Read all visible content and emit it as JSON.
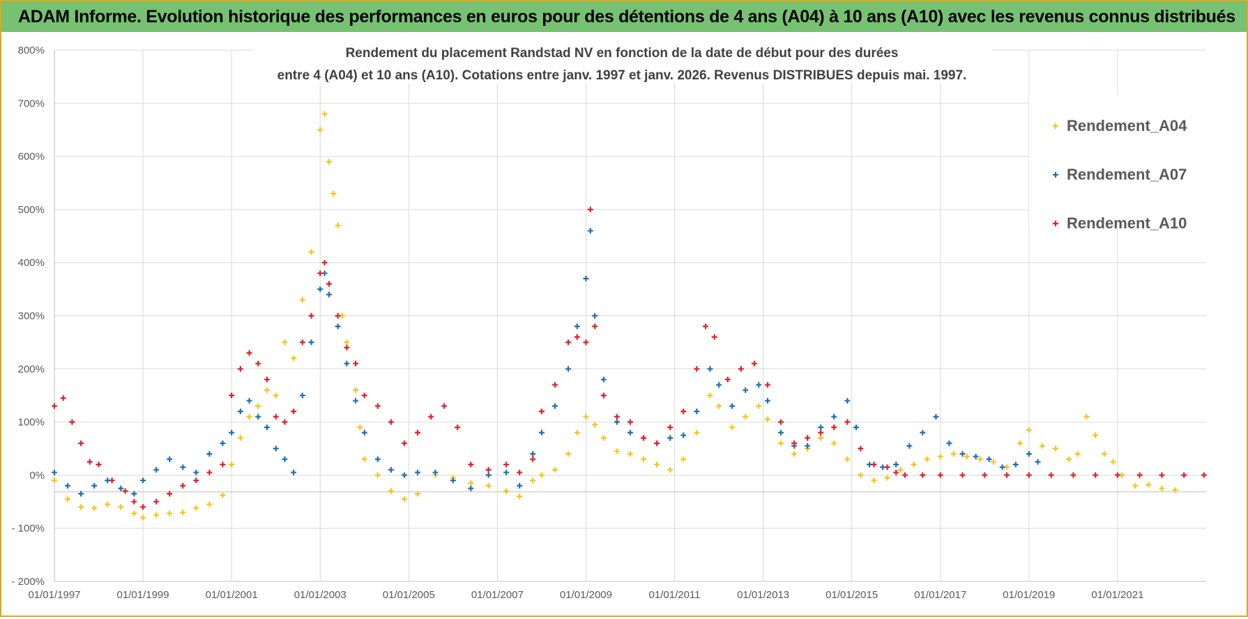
{
  "banner": {
    "title": "ADAM Informe. Evolution historique des performances en euros pour des détentions de 4 ans (A04) à 10 ans (A10) avec les revenus connus distribués"
  },
  "colors": {
    "banner_bg": "#76c172",
    "frame": "#d9a81f",
    "A04": "#f5c518",
    "A07": "#1f6fb8",
    "A10": "#e3202a",
    "grid": "#d9d9d9"
  },
  "chart_data": {
    "type": "scatter",
    "title_line1": "Rendement du placement Randstad NV en fonction de la date de début pour des durées",
    "title_line2": "entre 4 (A04) et 10 ans (A10). Cotations entre janv. 1997 et janv. 2026. Revenus DISTRIBUES depuis mai. 1997.",
    "xlabel": "",
    "ylabel": "",
    "x_range": [
      1997.0,
      2023.0
    ],
    "ylim": [
      -200,
      800
    ],
    "y_ticks": [
      "800%",
      "700%",
      "600%",
      "500%",
      "400%",
      "300%",
      "200%",
      "100%",
      "0%",
      "- 100%",
      "- 200%"
    ],
    "y_tick_values": [
      800,
      700,
      600,
      500,
      400,
      300,
      200,
      100,
      0,
      -100,
      -200
    ],
    "x_ticks": [
      "01/01/1997",
      "01/01/1999",
      "01/01/2001",
      "01/01/2003",
      "01/01/2005",
      "01/01/2007",
      "01/01/2009",
      "01/01/2011",
      "01/01/2013",
      "01/01/2015",
      "01/01/2017",
      "01/01/2019",
      "01/01/2021"
    ],
    "x_tick_values": [
      1997,
      1999,
      2001,
      2003,
      2005,
      2007,
      2009,
      2011,
      2013,
      2015,
      2017,
      2019,
      2021
    ],
    "legend_position": "top-right",
    "grid": true,
    "series": [
      {
        "name": "Rendement_A04",
        "color": "#f5c518",
        "points": [
          [
            1997.0,
            -10
          ],
          [
            1997.3,
            -45
          ],
          [
            1997.6,
            -60
          ],
          [
            1997.9,
            -62
          ],
          [
            1998.2,
            -55
          ],
          [
            1998.5,
            -60
          ],
          [
            1998.8,
            -72
          ],
          [
            1999.0,
            -80
          ],
          [
            1999.3,
            -75
          ],
          [
            1999.6,
            -72
          ],
          [
            1999.9,
            -70
          ],
          [
            2000.2,
            -62
          ],
          [
            2000.5,
            -55
          ],
          [
            2000.8,
            -38
          ],
          [
            2001.0,
            20
          ],
          [
            2001.2,
            70
          ],
          [
            2001.4,
            110
          ],
          [
            2001.6,
            130
          ],
          [
            2001.8,
            160
          ],
          [
            2002.0,
            150
          ],
          [
            2002.2,
            250
          ],
          [
            2002.4,
            220
          ],
          [
            2002.6,
            330
          ],
          [
            2002.8,
            420
          ],
          [
            2003.0,
            650
          ],
          [
            2003.1,
            680
          ],
          [
            2003.2,
            590
          ],
          [
            2003.3,
            530
          ],
          [
            2003.4,
            470
          ],
          [
            2003.5,
            300
          ],
          [
            2003.6,
            250
          ],
          [
            2003.8,
            160
          ],
          [
            2003.9,
            90
          ],
          [
            2004.0,
            30
          ],
          [
            2004.3,
            0
          ],
          [
            2004.6,
            -30
          ],
          [
            2004.9,
            -45
          ],
          [
            2005.2,
            -35
          ],
          [
            2005.6,
            0
          ],
          [
            2006.0,
            -5
          ],
          [
            2006.4,
            -15
          ],
          [
            2006.8,
            -20
          ],
          [
            2007.2,
            -30
          ],
          [
            2007.5,
            -40
          ],
          [
            2007.8,
            -10
          ],
          [
            2008.0,
            0
          ],
          [
            2008.3,
            10
          ],
          [
            2008.6,
            40
          ],
          [
            2008.8,
            80
          ],
          [
            2009.0,
            110
          ],
          [
            2009.2,
            95
          ],
          [
            2009.4,
            70
          ],
          [
            2009.7,
            45
          ],
          [
            2010.0,
            40
          ],
          [
            2010.3,
            30
          ],
          [
            2010.6,
            20
          ],
          [
            2010.9,
            10
          ],
          [
            2011.2,
            30
          ],
          [
            2011.5,
            80
          ],
          [
            2011.8,
            150
          ],
          [
            2012.0,
            130
          ],
          [
            2012.3,
            90
          ],
          [
            2012.6,
            110
          ],
          [
            2012.9,
            130
          ],
          [
            2013.1,
            105
          ],
          [
            2013.4,
            60
          ],
          [
            2013.7,
            40
          ],
          [
            2014.0,
            50
          ],
          [
            2014.3,
            70
          ],
          [
            2014.6,
            60
          ],
          [
            2014.9,
            30
          ],
          [
            2015.2,
            0
          ],
          [
            2015.5,
            -10
          ],
          [
            2015.8,
            -5
          ],
          [
            2016.1,
            10
          ],
          [
            2016.4,
            20
          ],
          [
            2016.7,
            30
          ],
          [
            2017.0,
            35
          ],
          [
            2017.3,
            40
          ],
          [
            2017.6,
            35
          ],
          [
            2017.9,
            30
          ],
          [
            2018.2,
            25
          ],
          [
            2018.5,
            15
          ],
          [
            2018.8,
            60
          ],
          [
            2019.0,
            85
          ],
          [
            2019.3,
            55
          ],
          [
            2019.6,
            50
          ],
          [
            2019.9,
            30
          ],
          [
            2020.1,
            40
          ],
          [
            2020.3,
            110
          ],
          [
            2020.5,
            75
          ],
          [
            2020.7,
            40
          ],
          [
            2020.9,
            25
          ],
          [
            2021.1,
            0
          ],
          [
            2021.4,
            -20
          ],
          [
            2021.7,
            -18
          ],
          [
            2022.0,
            -25
          ],
          [
            2022.3,
            -28
          ]
        ]
      },
      {
        "name": "Rendement_A07",
        "color": "#1f6fb8",
        "points": [
          [
            1997.0,
            5
          ],
          [
            1997.3,
            -20
          ],
          [
            1997.6,
            -35
          ],
          [
            1997.9,
            -20
          ],
          [
            1998.2,
            -10
          ],
          [
            1998.5,
            -25
          ],
          [
            1998.8,
            -35
          ],
          [
            1999.0,
            -10
          ],
          [
            1999.3,
            10
          ],
          [
            1999.6,
            30
          ],
          [
            1999.9,
            15
          ],
          [
            2000.2,
            5
          ],
          [
            2000.5,
            40
          ],
          [
            2000.8,
            60
          ],
          [
            2001.0,
            80
          ],
          [
            2001.2,
            120
          ],
          [
            2001.4,
            140
          ],
          [
            2001.6,
            110
          ],
          [
            2001.8,
            90
          ],
          [
            2002.0,
            50
          ],
          [
            2002.2,
            30
          ],
          [
            2002.4,
            5
          ],
          [
            2002.6,
            150
          ],
          [
            2002.8,
            250
          ],
          [
            2003.0,
            350
          ],
          [
            2003.1,
            380
          ],
          [
            2003.2,
            340
          ],
          [
            2003.4,
            280
          ],
          [
            2003.6,
            210
          ],
          [
            2003.8,
            140
          ],
          [
            2004.0,
            80
          ],
          [
            2004.3,
            30
          ],
          [
            2004.6,
            10
          ],
          [
            2004.9,
            0
          ],
          [
            2005.2,
            5
          ],
          [
            2005.6,
            5
          ],
          [
            2006.0,
            -10
          ],
          [
            2006.4,
            -25
          ],
          [
            2006.8,
            0
          ],
          [
            2007.2,
            5
          ],
          [
            2007.5,
            -20
          ],
          [
            2007.8,
            40
          ],
          [
            2008.0,
            80
          ],
          [
            2008.3,
            130
          ],
          [
            2008.6,
            200
          ],
          [
            2008.8,
            280
          ],
          [
            2009.0,
            370
          ],
          [
            2009.1,
            460
          ],
          [
            2009.2,
            300
          ],
          [
            2009.4,
            180
          ],
          [
            2009.7,
            100
          ],
          [
            2010.0,
            80
          ],
          [
            2010.3,
            70
          ],
          [
            2010.6,
            60
          ],
          [
            2010.9,
            70
          ],
          [
            2011.2,
            75
          ],
          [
            2011.5,
            120
          ],
          [
            2011.8,
            200
          ],
          [
            2012.0,
            170
          ],
          [
            2012.3,
            130
          ],
          [
            2012.6,
            160
          ],
          [
            2012.9,
            170
          ],
          [
            2013.1,
            140
          ],
          [
            2013.4,
            80
          ],
          [
            2013.7,
            55
          ],
          [
            2014.0,
            55
          ],
          [
            2014.3,
            90
          ],
          [
            2014.6,
            110
          ],
          [
            2014.9,
            140
          ],
          [
            2015.1,
            90
          ],
          [
            2015.4,
            20
          ],
          [
            2015.7,
            15
          ],
          [
            2016.0,
            20
          ],
          [
            2016.3,
            55
          ],
          [
            2016.6,
            80
          ],
          [
            2016.9,
            110
          ],
          [
            2017.2,
            60
          ],
          [
            2017.5,
            40
          ],
          [
            2017.8,
            35
          ],
          [
            2018.1,
            30
          ],
          [
            2018.4,
            15
          ],
          [
            2018.7,
            20
          ],
          [
            2019.0,
            40
          ],
          [
            2019.2,
            25
          ]
        ]
      },
      {
        "name": "Rendement_A10",
        "color": "#e3202a",
        "points": [
          [
            1997.0,
            130
          ],
          [
            1997.2,
            145
          ],
          [
            1997.4,
            100
          ],
          [
            1997.6,
            60
          ],
          [
            1997.8,
            25
          ],
          [
            1998.0,
            20
          ],
          [
            1998.3,
            -10
          ],
          [
            1998.6,
            -30
          ],
          [
            1998.8,
            -50
          ],
          [
            1999.0,
            -60
          ],
          [
            1999.3,
            -50
          ],
          [
            1999.6,
            -35
          ],
          [
            1999.9,
            -20
          ],
          [
            2000.2,
            -10
          ],
          [
            2000.5,
            5
          ],
          [
            2000.8,
            20
          ],
          [
            2001.0,
            150
          ],
          [
            2001.2,
            200
          ],
          [
            2001.4,
            230
          ],
          [
            2001.6,
            210
          ],
          [
            2001.8,
            180
          ],
          [
            2002.0,
            110
          ],
          [
            2002.2,
            100
          ],
          [
            2002.4,
            120
          ],
          [
            2002.6,
            250
          ],
          [
            2002.8,
            300
          ],
          [
            2003.0,
            380
          ],
          [
            2003.1,
            400
          ],
          [
            2003.2,
            360
          ],
          [
            2003.4,
            300
          ],
          [
            2003.6,
            240
          ],
          [
            2003.8,
            210
          ],
          [
            2004.0,
            150
          ],
          [
            2004.3,
            130
          ],
          [
            2004.6,
            100
          ],
          [
            2004.9,
            60
          ],
          [
            2005.2,
            80
          ],
          [
            2005.5,
            110
          ],
          [
            2005.8,
            130
          ],
          [
            2006.1,
            90
          ],
          [
            2006.4,
            20
          ],
          [
            2006.8,
            10
          ],
          [
            2007.2,
            20
          ],
          [
            2007.5,
            5
          ],
          [
            2007.8,
            30
          ],
          [
            2008.0,
            120
          ],
          [
            2008.3,
            170
          ],
          [
            2008.6,
            250
          ],
          [
            2008.8,
            260
          ],
          [
            2009.0,
            250
          ],
          [
            2009.1,
            500
          ],
          [
            2009.2,
            280
          ],
          [
            2009.4,
            150
          ],
          [
            2009.7,
            110
          ],
          [
            2010.0,
            100
          ],
          [
            2010.3,
            70
          ],
          [
            2010.6,
            60
          ],
          [
            2010.9,
            90
          ],
          [
            2011.2,
            120
          ],
          [
            2011.5,
            200
          ],
          [
            2011.7,
            280
          ],
          [
            2011.9,
            260
          ],
          [
            2012.2,
            180
          ],
          [
            2012.5,
            200
          ],
          [
            2012.8,
            210
          ],
          [
            2013.1,
            170
          ],
          [
            2013.4,
            100
          ],
          [
            2013.7,
            60
          ],
          [
            2014.0,
            70
          ],
          [
            2014.3,
            80
          ],
          [
            2014.6,
            90
          ],
          [
            2014.9,
            100
          ],
          [
            2015.2,
            50
          ],
          [
            2015.5,
            20
          ],
          [
            2015.8,
            15
          ],
          [
            2016.0,
            5
          ],
          [
            2016.2,
            0
          ],
          [
            2016.6,
            0
          ],
          [
            2017.0,
            0
          ],
          [
            2017.5,
            0
          ],
          [
            2018.0,
            0
          ],
          [
            2018.5,
            0
          ],
          [
            2019.0,
            0
          ],
          [
            2019.5,
            0
          ],
          [
            2020.0,
            0
          ],
          [
            2020.5,
            0
          ],
          [
            2021.0,
            0
          ],
          [
            2021.5,
            0
          ],
          [
            2022.0,
            0
          ],
          [
            2022.5,
            0
          ],
          [
            2022.95,
            0
          ]
        ]
      }
    ]
  }
}
